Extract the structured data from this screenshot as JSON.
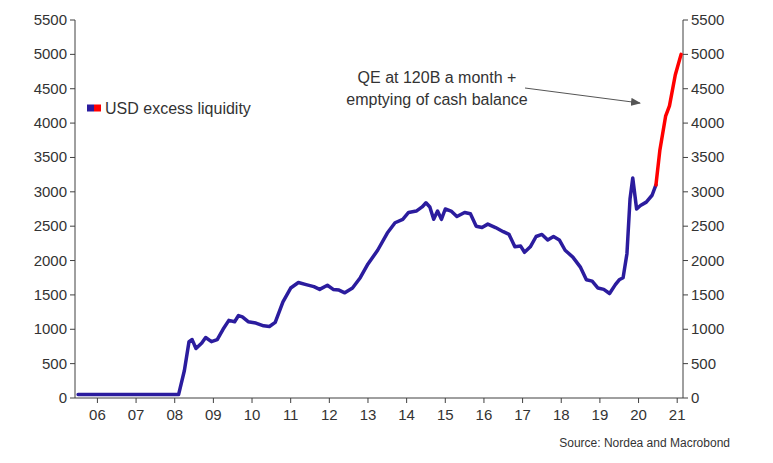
{
  "chart_data": {
    "type": "line",
    "x": [
      2006.0,
      2008.6,
      2008.75,
      2008.87,
      2008.95,
      2009.05,
      2009.2,
      2009.3,
      2009.45,
      2009.6,
      2009.75,
      2009.9,
      2010.05,
      2010.15,
      2010.25,
      2010.4,
      2010.6,
      2010.8,
      2010.95,
      2011.1,
      2011.3,
      2011.5,
      2011.7,
      2011.9,
      2012.1,
      2012.25,
      2012.45,
      2012.6,
      2012.75,
      2012.9,
      2013.1,
      2013.3,
      2013.5,
      2013.75,
      2014.0,
      2014.2,
      2014.4,
      2014.55,
      2014.75,
      2014.9,
      2015.0,
      2015.1,
      2015.2,
      2015.3,
      2015.4,
      2015.5,
      2015.65,
      2015.8,
      2016.0,
      2016.15,
      2016.3,
      2016.45,
      2016.6,
      2016.8,
      2017.0,
      2017.15,
      2017.3,
      2017.45,
      2017.55,
      2017.7,
      2017.85,
      2018.0,
      2018.15,
      2018.3,
      2018.45,
      2018.6,
      2018.8,
      2019.0,
      2019.15,
      2019.3,
      2019.45,
      2019.6,
      2019.75,
      2019.9,
      2020.0,
      2020.1,
      2020.2,
      2020.28,
      2020.35,
      2020.45,
      2020.55,
      2020.7,
      2020.85,
      2020.95,
      2021.05,
      2021.2,
      2021.3,
      2021.45,
      2021.6
    ],
    "series": [
      {
        "name": "USD excess liquidity",
        "color": "#2b1c9e",
        "values": [
          50,
          50,
          400,
          820,
          850,
          720,
          800,
          880,
          820,
          850,
          1000,
          1130,
          1110,
          1200,
          1180,
          1110,
          1090,
          1050,
          1040,
          1100,
          1400,
          1600,
          1680,
          1650,
          1620,
          1580,
          1640,
          1580,
          1570,
          1530,
          1600,
          1750,
          1950,
          2150,
          2400,
          2550,
          2600,
          2700,
          2720,
          2780,
          2840,
          2780,
          2600,
          2720,
          2600,
          2750,
          2720,
          2640,
          2700,
          2680,
          2500,
          2480,
          2530,
          2480,
          2420,
          2380,
          2200,
          2210,
          2120,
          2200,
          2350,
          2380,
          2300,
          2350,
          2300,
          2150,
          2050,
          1900,
          1720,
          1700,
          1600,
          1580,
          1520,
          1650,
          1720,
          1750,
          2100,
          2900,
          3200,
          2750,
          2800,
          2850,
          2950,
          3100,
          null,
          null,
          null,
          null,
          null
        ]
      },
      {
        "color": "#ff0000",
        "values": [
          null,
          null,
          null,
          null,
          null,
          null,
          null,
          null,
          null,
          null,
          null,
          null,
          null,
          null,
          null,
          null,
          null,
          null,
          null,
          null,
          null,
          null,
          null,
          null,
          null,
          null,
          null,
          null,
          null,
          null,
          null,
          null,
          null,
          null,
          null,
          null,
          null,
          null,
          null,
          null,
          null,
          null,
          null,
          null,
          null,
          null,
          null,
          null,
          null,
          null,
          null,
          null,
          null,
          null,
          null,
          null,
          null,
          null,
          null,
          null,
          null,
          null,
          null,
          null,
          null,
          null,
          null,
          null,
          null,
          null,
          null,
          null,
          null,
          null,
          null,
          null,
          null,
          null,
          null,
          null,
          null,
          null,
          null,
          3100,
          3600,
          4100,
          4250,
          4700,
          5000
        ]
      }
    ],
    "xlim": [
      2005.92,
      2021.65
    ],
    "xticks": [
      {
        "value": 2006.5,
        "label": "06"
      },
      {
        "value": 2007.5,
        "label": "07"
      },
      {
        "value": 2008.5,
        "label": "08"
      },
      {
        "value": 2009.5,
        "label": "09"
      },
      {
        "value": 2010.5,
        "label": "10"
      },
      {
        "value": 2011.5,
        "label": "11"
      },
      {
        "value": 2012.5,
        "label": "12"
      },
      {
        "value": 2013.5,
        "label": "13"
      },
      {
        "value": 2014.5,
        "label": "14"
      },
      {
        "value": 2015.5,
        "label": "15"
      },
      {
        "value": 2016.5,
        "label": "16"
      },
      {
        "value": 2017.5,
        "label": "17"
      },
      {
        "value": 2018.5,
        "label": "18"
      },
      {
        "value": 2019.5,
        "label": "19"
      },
      {
        "value": 2020.5,
        "label": "20"
      },
      {
        "value": 2021.5,
        "label": "21"
      }
    ],
    "ylim": [
      0,
      5500
    ],
    "yticks": [
      0,
      500,
      1000,
      1500,
      2000,
      2500,
      3000,
      3500,
      4000,
      4500,
      5000,
      5500
    ],
    "y2lim": [
      0,
      5500
    ],
    "y2ticks": [
      0,
      500,
      1000,
      1500,
      2000,
      2500,
      3000,
      3500,
      4000,
      4500,
      5000,
      5500
    ],
    "grid": false,
    "legend": "top-left",
    "annotations": [
      "QE at 120B a month +",
      "emptying of cash balance"
    ],
    "source": "Source: Nordea and Macrobond"
  }
}
